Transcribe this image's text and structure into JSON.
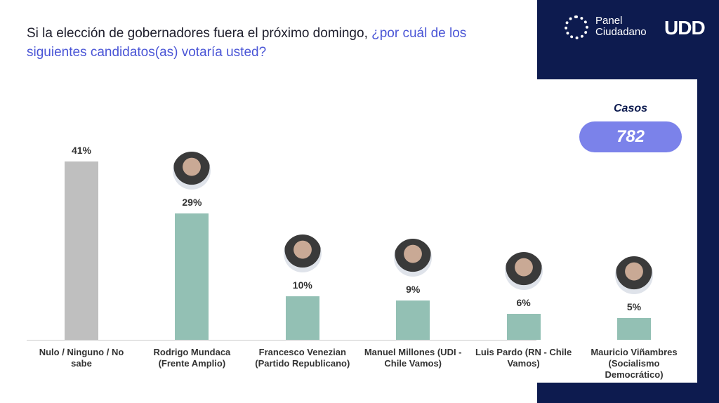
{
  "brand": {
    "name": [
      "Panel",
      "Ciudadano"
    ],
    "logo": "UDD"
  },
  "cases": {
    "label": "Casos",
    "value": 782
  },
  "chart_data": {
    "type": "bar",
    "title": [
      "Si la elección de gobernadores fuera el próximo domingo, ",
      "¿por cuál de los siguientes candidatos(as) votaría usted?"
    ],
    "categories": [
      "Nulo / Ninguno / No sabe",
      "Rodrigo Mundaca (Frente Amplio)",
      "Francesco Venezian (Partido Republicano)",
      "Manuel Millones (UDI - Chile Vamos)",
      "Luis Pardo (RN - Chile Vamos)",
      "Mauricio Viñambres (Socialismo Democrático)"
    ],
    "values": [
      41,
      29,
      10,
      9,
      6,
      5
    ],
    "value_labels": [
      "41%",
      "29%",
      "10%",
      "9%",
      "6%",
      "5%"
    ],
    "colors": [
      "#bfbfbf",
      "#93c0b4",
      "#93c0b4",
      "#93c0b4",
      "#93c0b4",
      "#93c0b4"
    ]
  }
}
